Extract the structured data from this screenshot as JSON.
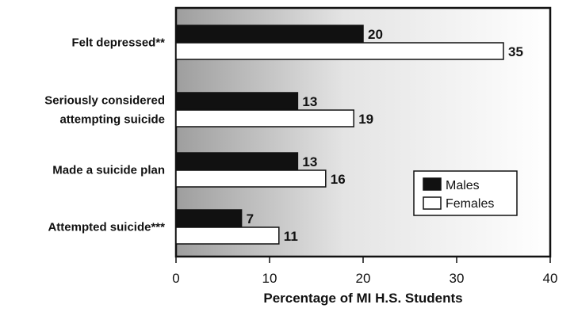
{
  "chart_data": {
    "type": "bar",
    "orientation": "horizontal",
    "categories": [
      [
        "Felt depressed**"
      ],
      [
        "Seriously considered",
        "attempting suicide"
      ],
      [
        "Made a suicide plan"
      ],
      [
        "Attempted suicide***"
      ]
    ],
    "series": [
      {
        "name": "Males",
        "values": [
          20,
          13,
          13,
          7
        ],
        "color": "#111111"
      },
      {
        "name": "Females",
        "values": [
          35,
          19,
          16,
          11
        ],
        "color": "#ffffff"
      }
    ],
    "xlabel": "Percentage of MI H.S. Students",
    "xlim": [
      0,
      40
    ],
    "xticks": [
      "0",
      "10",
      "20",
      "30",
      "40"
    ],
    "grid": false,
    "legend": "center-right",
    "background": "gradient-gray"
  }
}
